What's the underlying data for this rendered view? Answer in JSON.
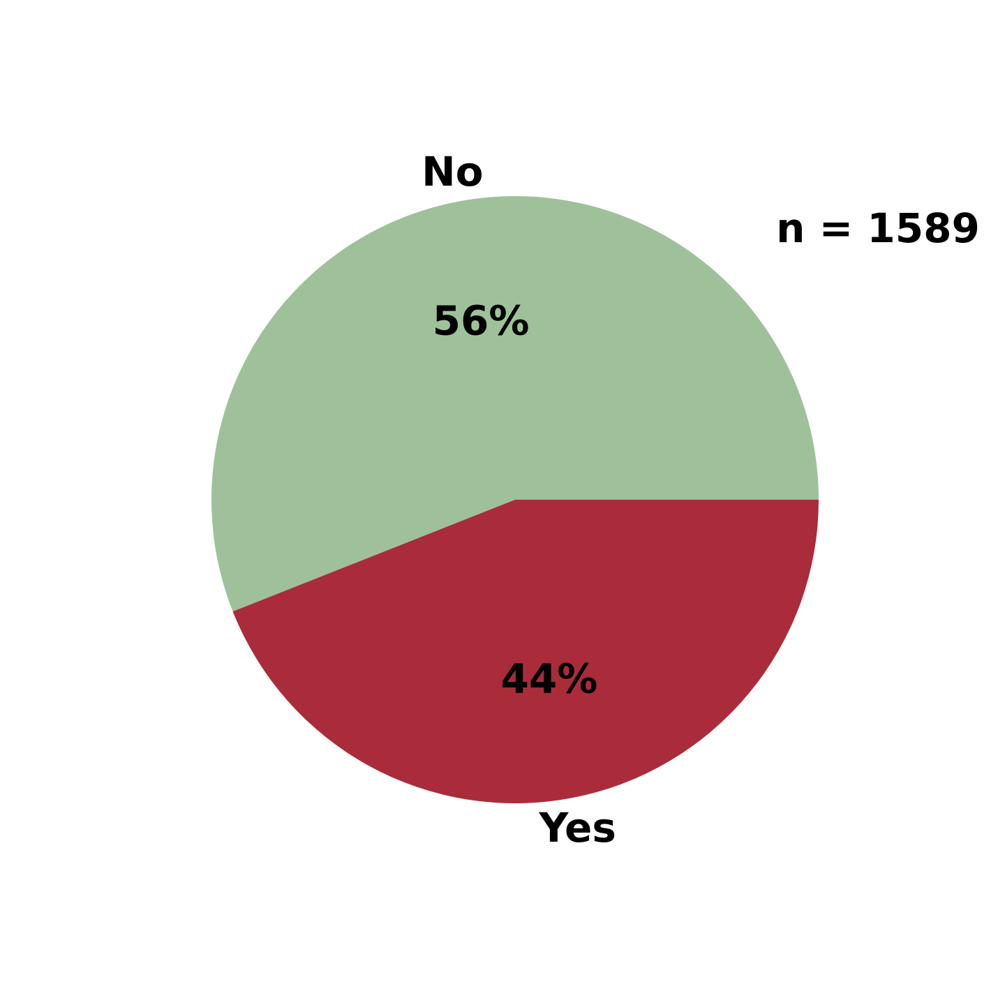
{
  "chart_data": {
    "type": "pie",
    "title": "",
    "annotation": "n = 1589",
    "slices": [
      {
        "label": "No",
        "value": 56,
        "display": "56%",
        "color": "#9ec19a"
      },
      {
        "label": "Yes",
        "value": 44,
        "display": "44%",
        "color": "#aa2c3a"
      }
    ],
    "legend": "none"
  }
}
